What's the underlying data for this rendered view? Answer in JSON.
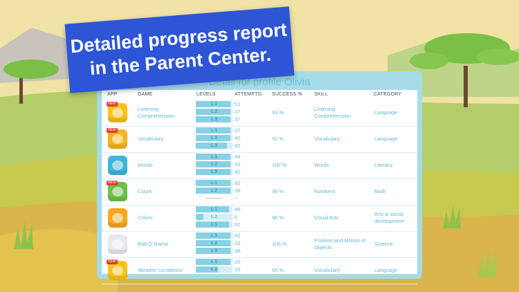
{
  "banner": {
    "line1": "Detailed progress report",
    "line2": "in the Parent Center."
  },
  "title": "Detail for profile Olivia",
  "headers": {
    "app": "APP",
    "game": "GAME",
    "levels": "LEVELS",
    "attempts": "ATTEMPTS",
    "success": "SUCCESS %",
    "skill": "SKILL",
    "category": "CATEGORY"
  },
  "colors": {
    "banner": "#2e55d6",
    "panel": "#a6dbe8",
    "accent": "#5fb8d4",
    "bar_fill": "#88d0e4"
  },
  "rows": [
    {
      "game": "Listening\nComprehension",
      "levels": [
        {
          "label": "L 1",
          "fill": 0.95,
          "attempts": "51"
        },
        {
          "label": "L 2",
          "fill": 0.95,
          "attempts": "37"
        },
        {
          "label": "L 3",
          "fill": 0.95,
          "attempts": "37"
        }
      ],
      "success": "93 %",
      "skill": "Listening\nComprehension",
      "category": "Language",
      "icon": "app-icon-listening",
      "iconColor": "#f7c21b",
      "badge": "NEW"
    },
    {
      "game": "Vocabulary",
      "levels": [
        {
          "label": "L 1",
          "fill": 0.95,
          "attempts": "37"
        },
        {
          "label": "L 2",
          "fill": 0.95,
          "attempts": "42"
        },
        {
          "label": "L 3",
          "fill": 0.85,
          "attempts": "42"
        }
      ],
      "success": "92 %",
      "skill": "Vocabulary",
      "category": "Language",
      "icon": "app-icon-vocabulary",
      "iconColor": "#f3b51f",
      "badge": "NEW"
    },
    {
      "game": "Words",
      "levels": [
        {
          "label": "L 1",
          "fill": 0.95,
          "attempts": "44"
        },
        {
          "label": "L 2",
          "fill": 0.95,
          "attempts": "33"
        },
        {
          "label": "L 3",
          "fill": 0.95,
          "attempts": "40"
        }
      ],
      "success": "100 %",
      "skill": "Words",
      "category": "Literacy",
      "icon": "app-icon-words",
      "iconColor": "#3fb6d9",
      "badge": ""
    },
    {
      "game": "Count",
      "levels": [
        {
          "label": "L 1",
          "fill": 0.95,
          "attempts": "82"
        },
        {
          "label": "L 2",
          "fill": 0.95,
          "attempts": "35"
        },
        {
          "label": "-----------",
          "fill": 0,
          "attempts": "--"
        }
      ],
      "success": "98 %",
      "skill": "Numbers",
      "category": "Math",
      "icon": "app-icon-count",
      "iconColor": "#6cc04a",
      "badge": "NEW"
    },
    {
      "game": "Colors",
      "levels": [
        {
          "label": "L 1",
          "fill": 0.9,
          "attempts": "46"
        },
        {
          "label": "L 2",
          "fill": 0.2,
          "attempts": "6"
        },
        {
          "label": "L 3",
          "fill": 0.9,
          "attempts": "62"
        }
      ],
      "success": "96 %",
      "skill": "Visual Arts",
      "category": "Arts & social\ndevelopment",
      "icon": "app-icon-colors",
      "iconColor": "#f7a81c",
      "badge": ""
    },
    {
      "game": "Ball-O-Rama",
      "levels": [
        {
          "label": "L 1",
          "fill": 0.95,
          "attempts": "42"
        },
        {
          "label": "L 2",
          "fill": 0.95,
          "attempts": "33"
        },
        {
          "label": "L 3",
          "fill": 0.95,
          "attempts": "38"
        }
      ],
      "success": "100 %",
      "skill": "Position and Motion of\nObjects",
      "category": "Science",
      "icon": "app-icon-ball",
      "iconColor": "#e8e8f0",
      "badge": ""
    },
    {
      "game": "Weather conditions",
      "levels": [
        {
          "label": "L 1",
          "fill": 0.95,
          "attempts": "28"
        },
        {
          "label": "L 2",
          "fill": 0.6,
          "attempts": "19"
        }
      ],
      "success": "95 %",
      "skill": "Vocabulary",
      "category": "Language",
      "icon": "app-icon-weather",
      "iconColor": "#f7c21b",
      "badge": "NEW"
    }
  ]
}
